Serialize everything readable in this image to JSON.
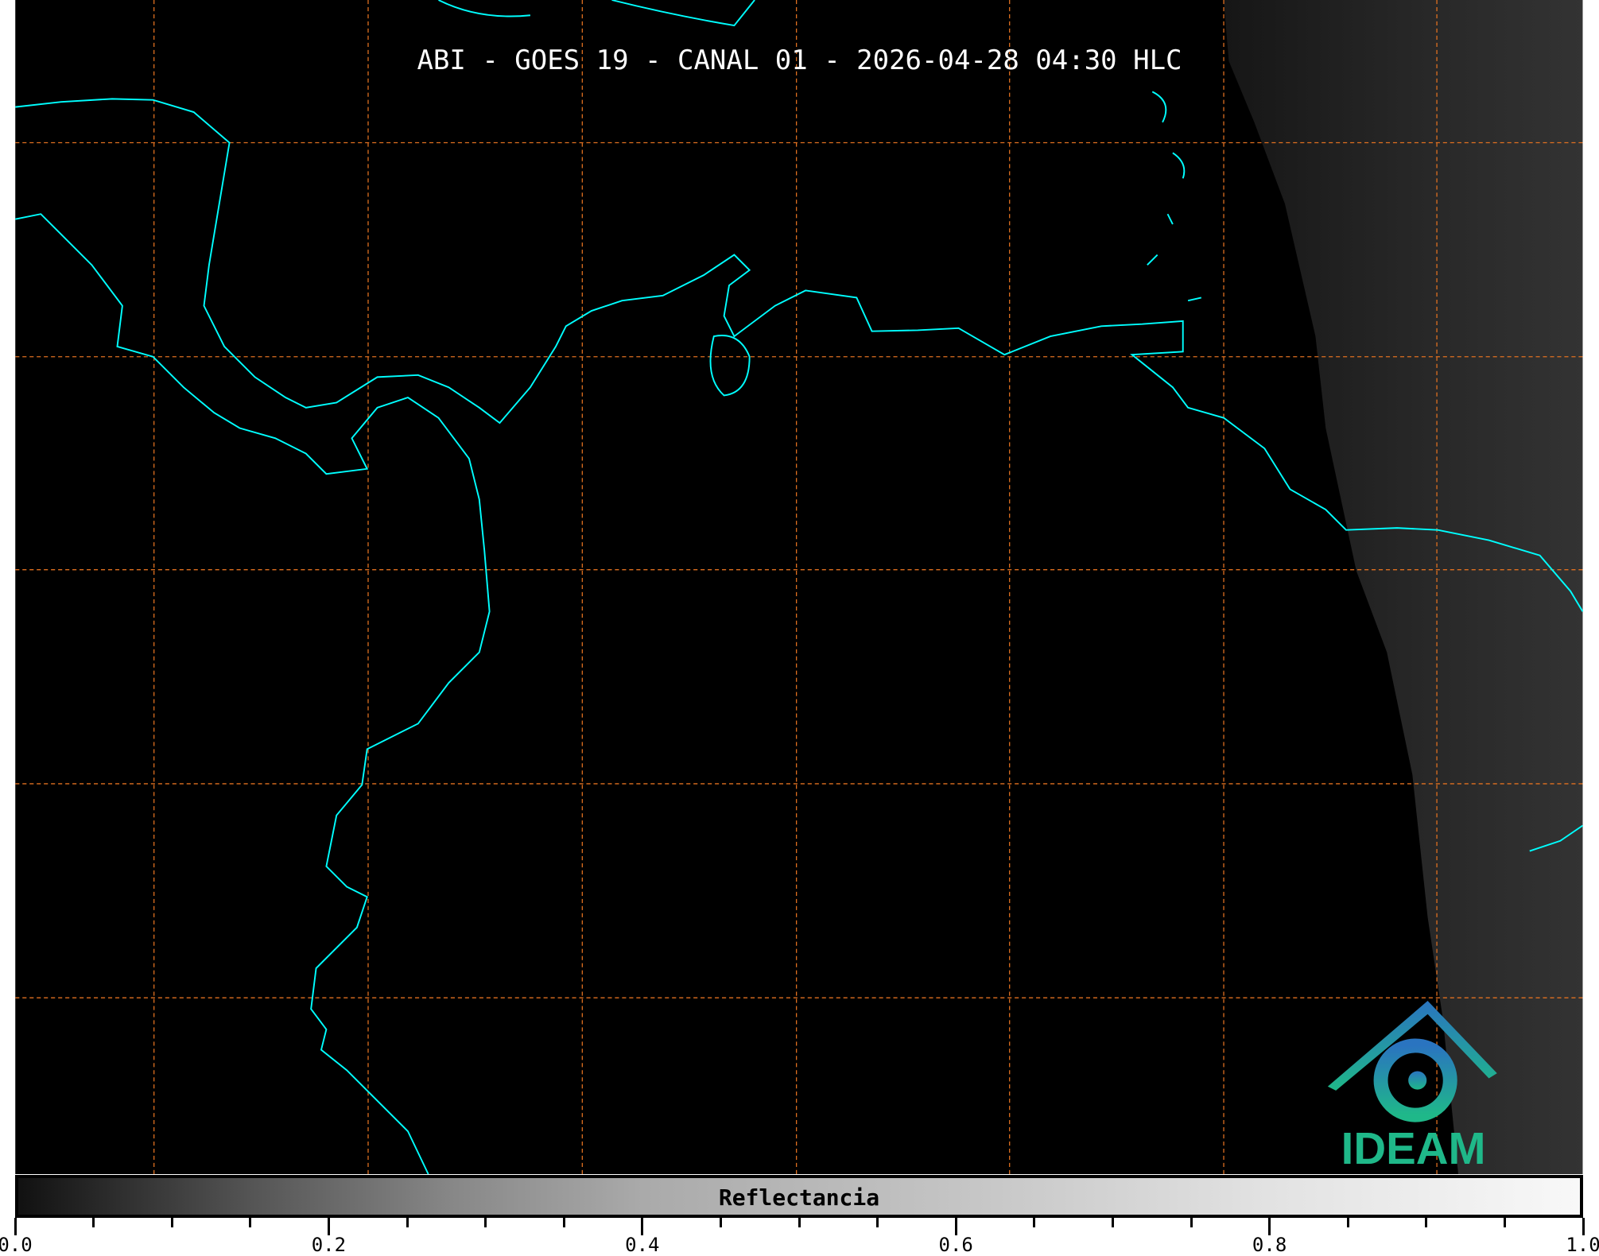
{
  "title": "ABI - GOES 19 - CANAL 01 - 2026-04-28 04:30 HLC",
  "colorbar": {
    "label": "Reflectancia",
    "range": [
      0.0,
      1.0
    ],
    "colormap": "grayscale",
    "tick_labels": [
      "0.0",
      "0.2",
      "0.4",
      "0.6",
      "0.8",
      "1.0"
    ]
  },
  "logo": {
    "text": "IDEAM",
    "colors": [
      "#2a74c0",
      "#1fb889"
    ]
  },
  "colors": {
    "background": "#000000",
    "coastline": "#00ffff",
    "gridlines": "#e07020"
  }
}
